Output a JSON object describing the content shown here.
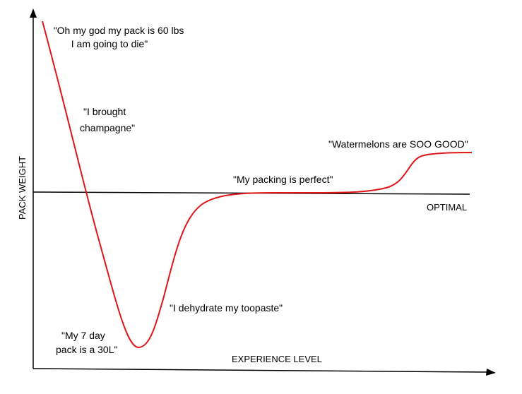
{
  "chart_data": {
    "type": "line",
    "xlabel": "EXPERIENCE LEVEL",
    "ylabel": "PACK WEIGHT",
    "reference_line": {
      "label": "OPTIMAL"
    },
    "series": [
      {
        "color": "#e0161b"
      }
    ],
    "annotations": [
      {
        "id": "a1",
        "lines": [
          "\"Oh my god my pack is 60 lbs",
          "I am going to die\""
        ]
      },
      {
        "id": "a2",
        "lines": [
          "\"I brought",
          "champagne\""
        ]
      },
      {
        "id": "a3",
        "lines": [
          "\"My 7 day",
          "pack is a 30L\""
        ]
      },
      {
        "id": "a4",
        "lines": [
          "\"I dehydrate my toopaste\""
        ]
      },
      {
        "id": "a5",
        "lines": [
          "\"My packing is perfect\""
        ]
      },
      {
        "id": "a6",
        "lines": [
          "\"Watermelons are SOO GOOD\""
        ]
      }
    ],
    "grid": false,
    "axis_color": "#000000"
  }
}
